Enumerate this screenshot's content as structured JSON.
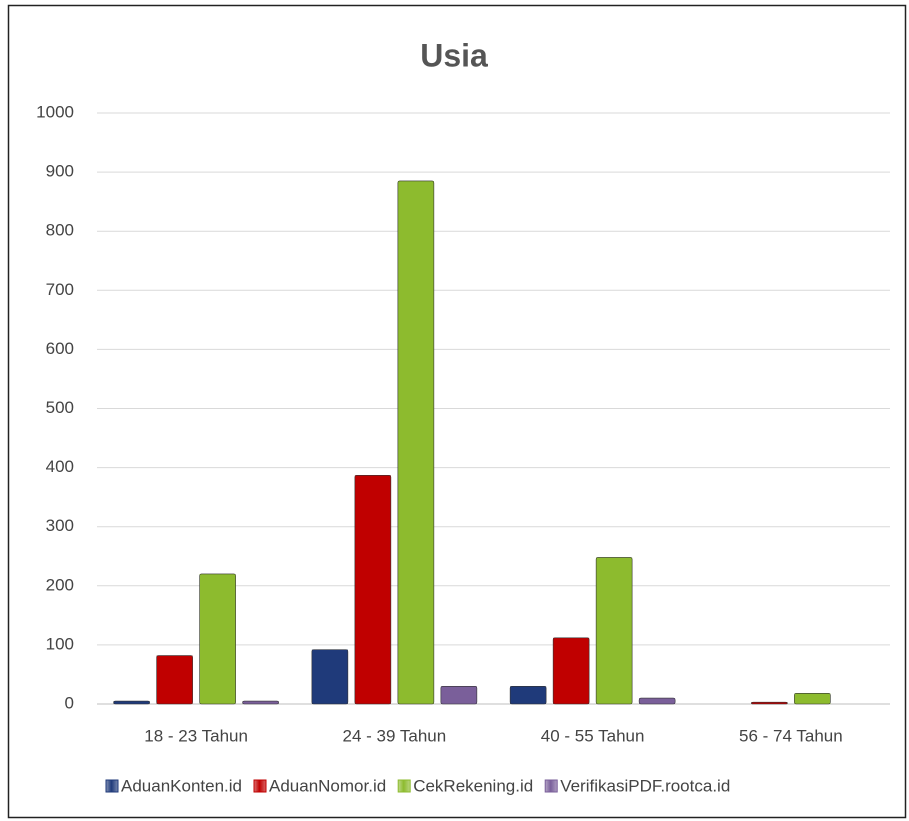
{
  "chart_data": {
    "type": "bar",
    "title": "Usia",
    "categories": [
      "18 - 23 Tahun",
      "24 - 39 Tahun",
      "40 - 55 Tahun",
      "56 - 74 Tahun"
    ],
    "series": [
      {
        "name": "AduanKonten.id",
        "color": "#1f3a7a",
        "values": [
          5,
          92,
          30,
          0
        ]
      },
      {
        "name": "AduanNomor.id",
        "color": "#c00000",
        "values": [
          82,
          387,
          112,
          3
        ]
      },
      {
        "name": "CekRekening.id",
        "color": "#8dbb2e",
        "values": [
          220,
          885,
          248,
          18
        ]
      },
      {
        "name": "VerifikasiPDF.rootca.id",
        "color": "#7a5f9a",
        "values": [
          5,
          30,
          10,
          0
        ]
      }
    ],
    "ylim": [
      0,
      1000
    ],
    "yticks": [
      0,
      100,
      200,
      300,
      400,
      500,
      600,
      700,
      800,
      900,
      1000
    ],
    "grid": true,
    "legend": "bottom"
  }
}
